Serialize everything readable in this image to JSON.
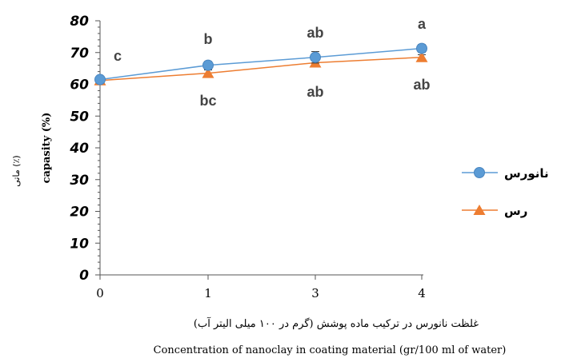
{
  "chart_data": {
    "type": "line",
    "categories": [
      "0",
      "1",
      "3",
      "4"
    ],
    "ylim": [
      0,
      80
    ],
    "yticks": [
      "0",
      "10",
      "20",
      "30",
      "40",
      "50",
      "60",
      "70",
      "80"
    ],
    "xlabel_fa": "غلظت نانورس در ترکیب ماده پوشش (گرم در ۱۰۰ میلی الیتر آب)",
    "xlabel_en": "Concentration of nanoclay in coating material (gr/100 ml of water)",
    "ylabel_en": "capasity (%)",
    "ylabel_fa": "ماتی (٪)",
    "legend_position": "right",
    "series": [
      {
        "name": "نانورس",
        "color": "#5b9bd5",
        "marker": "circle",
        "values": [
          61.5,
          66.0,
          68.5,
          71.3
        ],
        "errors": [
          1.0,
          1.2,
          1.8,
          1.2
        ],
        "labels": [
          "",
          "b",
          "ab",
          "a"
        ]
      },
      {
        "name": "رس",
        "color": "#ed7d31",
        "marker": "triangle",
        "values": [
          61.2,
          63.5,
          66.8,
          68.5
        ],
        "errors": [
          0.8,
          1.0,
          1.0,
          0.8
        ],
        "labels": [
          "c",
          "bc",
          "ab",
          "ab"
        ]
      }
    ]
  }
}
